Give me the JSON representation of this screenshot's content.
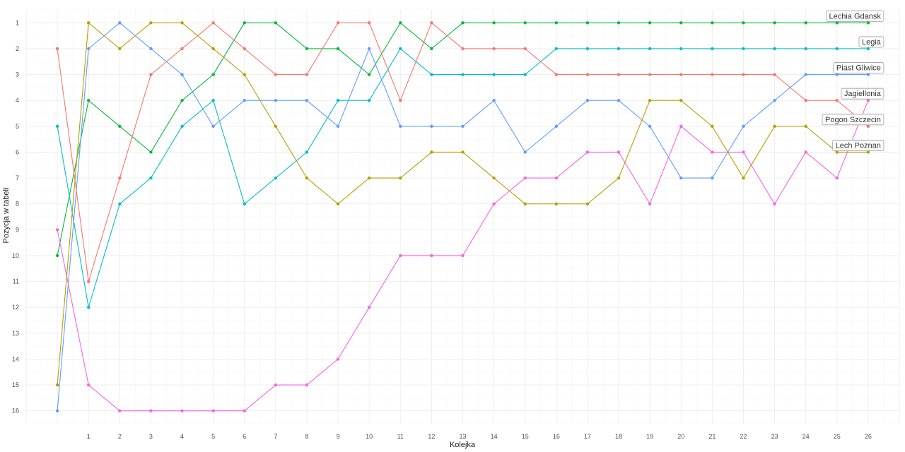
{
  "chart_data": {
    "type": "line",
    "xlabel": "Kolejka",
    "ylabel": "Pozycja w tabeli",
    "xlim": [
      -1,
      27
    ],
    "ylim": [
      16,
      1
    ],
    "y_reversed": true,
    "x_ticks": [
      1,
      2,
      3,
      4,
      5,
      6,
      7,
      8,
      9,
      10,
      11,
      12,
      13,
      14,
      15,
      16,
      17,
      18,
      19,
      20,
      21,
      22,
      23,
      24,
      25,
      26
    ],
    "y_ticks": [
      1,
      2,
      3,
      4,
      5,
      6,
      7,
      8,
      9,
      10,
      11,
      12,
      13,
      14,
      15,
      16
    ],
    "grid": true,
    "legend": "labels-at-line-ends",
    "x": [
      0,
      1,
      2,
      3,
      4,
      5,
      6,
      7,
      8,
      9,
      10,
      11,
      12,
      13,
      14,
      15,
      16,
      17,
      18,
      19,
      20,
      21,
      22,
      23,
      24,
      25,
      26
    ],
    "series": [
      {
        "name": "Lechia Gdansk",
        "color": "#00ba38",
        "values": [
          10,
          4,
          5,
          6,
          4,
          3,
          1,
          1,
          2,
          2,
          3,
          1,
          2,
          1,
          1,
          1,
          1,
          1,
          1,
          1,
          1,
          1,
          1,
          1,
          1,
          1,
          1
        ]
      },
      {
        "name": "Legia",
        "color": "#00bfc4",
        "values": [
          5,
          12,
          8,
          7,
          5,
          4,
          8,
          7,
          6,
          4,
          4,
          2,
          3,
          3,
          3,
          3,
          2,
          2,
          2,
          2,
          2,
          2,
          2,
          2,
          2,
          2,
          2
        ]
      },
      {
        "name": "Piast Gliwice",
        "color": "#619cff",
        "values": [
          16,
          2,
          1,
          2,
          3,
          5,
          4,
          4,
          4,
          5,
          2,
          5,
          5,
          5,
          4,
          6,
          5,
          4,
          4,
          5,
          7,
          7,
          5,
          4,
          3,
          3,
          3
        ]
      },
      {
        "name": "Pogon Szczecin",
        "color": "#f8766d",
        "values": [
          2,
          11,
          7,
          3,
          2,
          1,
          2,
          3,
          3,
          1,
          1,
          4,
          1,
          2,
          2,
          2,
          3,
          3,
          3,
          3,
          3,
          3,
          3,
          3,
          4,
          4,
          5
        ]
      },
      {
        "name": "Jagiellonia",
        "color": "#f564e3",
        "values": [
          9,
          15,
          16,
          16,
          16,
          16,
          16,
          15,
          15,
          14,
          12,
          10,
          10,
          10,
          8,
          7,
          7,
          6,
          6,
          8,
          5,
          6,
          6,
          8,
          6,
          7,
          4
        ]
      },
      {
        "name": "Lech Poznan",
        "color": "#b79f00",
        "values": [
          15,
          1,
          2,
          1,
          1,
          2,
          3,
          5,
          7,
          8,
          7,
          7,
          6,
          6,
          7,
          8,
          8,
          8,
          7,
          4,
          4,
          5,
          7,
          5,
          5,
          6,
          6
        ]
      }
    ]
  }
}
